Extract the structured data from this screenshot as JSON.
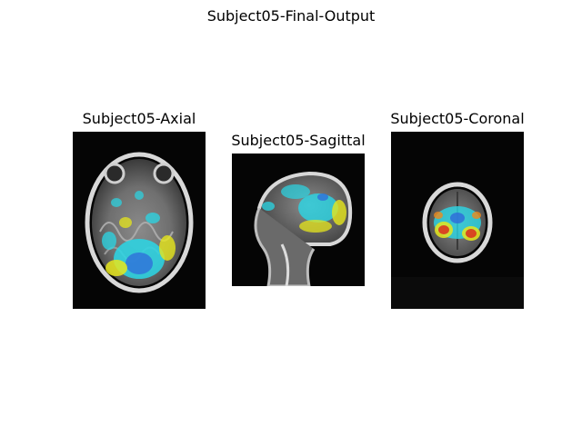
{
  "figure": {
    "title": "Subject05-Final-Output"
  },
  "panels": [
    {
      "title": "Subject05-Axial",
      "view": "axial"
    },
    {
      "title": "Subject05-Sagittal",
      "view": "sagittal"
    },
    {
      "title": "Subject05-Coronal",
      "view": "coronal"
    }
  ],
  "colors": {
    "background": "#050505",
    "overlay_cyan": "#2ad7e6",
    "overlay_blue": "#2f6fd9",
    "overlay_yellow": "#e6e61c",
    "overlay_red": "#d92b1f",
    "overlay_orange": "#f08a1a"
  }
}
